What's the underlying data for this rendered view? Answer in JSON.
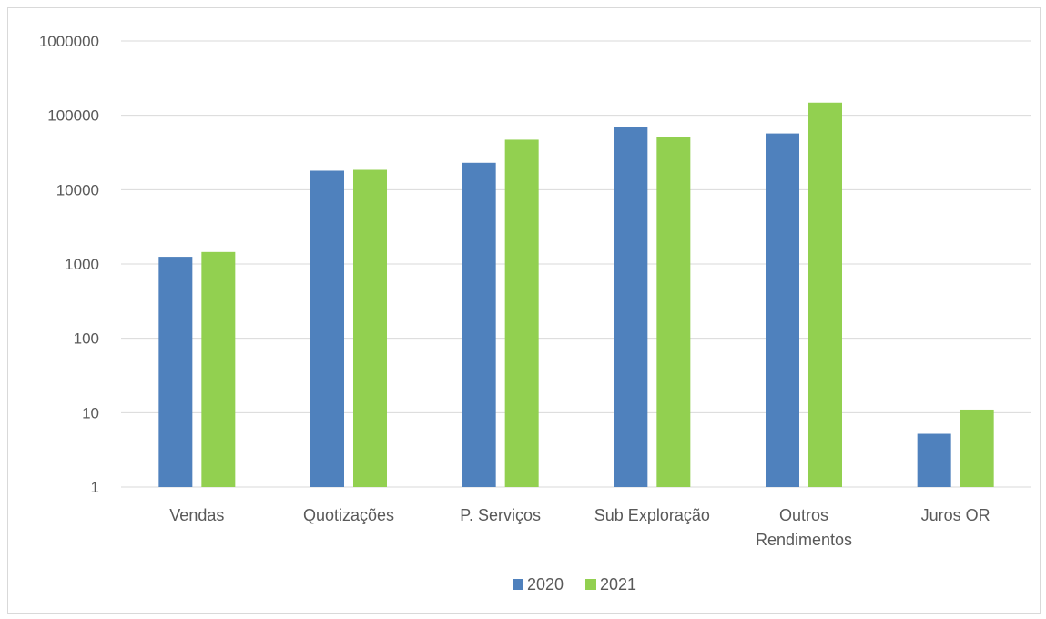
{
  "chart_data": {
    "type": "bar",
    "yscale": "log",
    "ylim": [
      1,
      1000000
    ],
    "yticks": [
      "1",
      "10",
      "100",
      "1000",
      "10000",
      "100000",
      "1000000"
    ],
    "categories": [
      [
        "Vendas"
      ],
      [
        "Quotizações"
      ],
      [
        "P. Serviços"
      ],
      [
        "Sub Exploração"
      ],
      [
        "Outros",
        "Rendimentos"
      ],
      [
        "Juros OR"
      ]
    ],
    "series": [
      {
        "name": "2020",
        "color": "#4f81bd",
        "values": [
          1250,
          18000,
          23000,
          70000,
          57000,
          5.2
        ]
      },
      {
        "name": "2021",
        "color": "#92d050",
        "values": [
          1450,
          18500,
          47000,
          51000,
          148000,
          11
        ]
      }
    ],
    "grid": true,
    "legend_position": "bottom"
  }
}
